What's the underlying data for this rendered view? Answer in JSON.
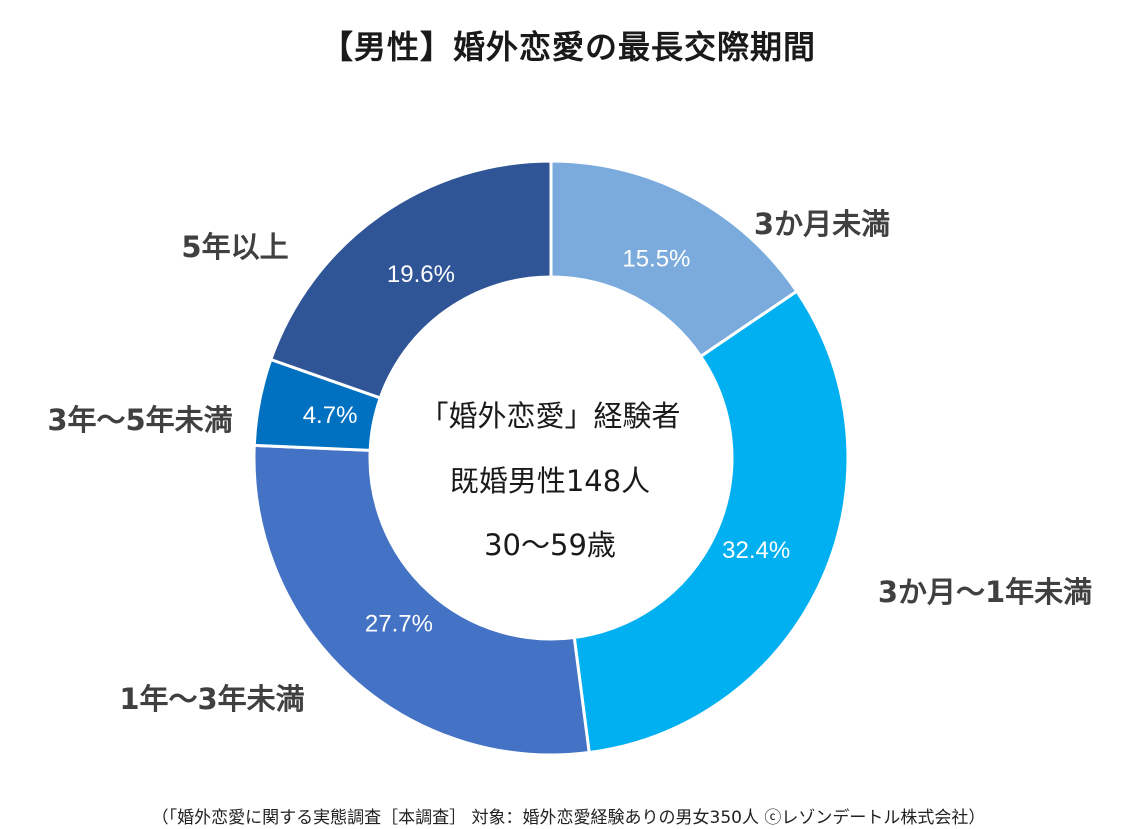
{
  "title": "【男性】婚外恋愛の最長交際期間",
  "center_labels": {
    "line1": "「婚外恋愛」経験者",
    "line2": "既婚男性148人",
    "line3": "30～59歳"
  },
  "footnote": "（「婚外恋愛に関する実態調査［本調査］ 対象：婚外恋愛経験ありの男女350人 ⓒレゾンデートル株式会社）",
  "chart_data": {
    "type": "pie",
    "donut": true,
    "start": "top",
    "direction": "clockwise",
    "slices": [
      {
        "label": "3か月未満",
        "value": 15.5,
        "value_label": "15.5%",
        "color": "#7aabdc"
      },
      {
        "label": "3か月～1年未満",
        "value": 32.4,
        "value_label": "32.4%",
        "color": "#00b0f0"
      },
      {
        "label": "1年～3年未満",
        "value": 27.7,
        "value_label": "27.7%",
        "color": "#4472c4"
      },
      {
        "label": "3年～5年未満",
        "value": 4.7,
        "value_label": "4.7%",
        "color": "#0070c0"
      },
      {
        "label": "5年以上",
        "value": 19.6,
        "value_label": "19.6%",
        "color": "#2f5597"
      }
    ]
  }
}
